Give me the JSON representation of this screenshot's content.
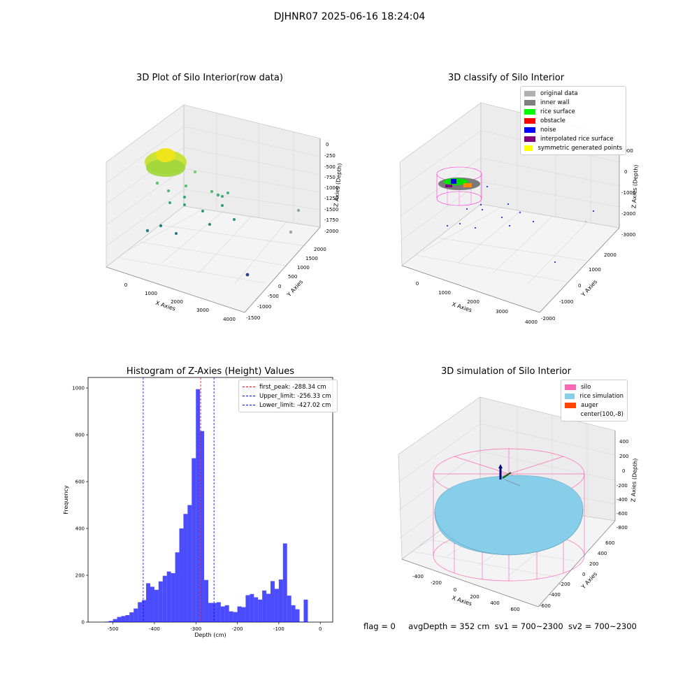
{
  "suptitle": "DJHNR07 2025-06-16 18:24:04",
  "panel1": {
    "title": "3D Plot of Silo Interior(row data)",
    "xlabel": "X Axies",
    "ylabel": "Y Axies",
    "zlabel": "Z Axies (Depth)",
    "x_ticks": [
      "0",
      "1000",
      "2000",
      "3000",
      "4000"
    ],
    "y_ticks": [
      "-1500",
      "-1000",
      "-500",
      "0",
      "500",
      "1000",
      "1500",
      "2000"
    ],
    "z_ticks": [
      "0",
      "-250",
      "-500",
      "-750",
      "-1000",
      "-1250",
      "-1500",
      "-1750",
      "-2000"
    ]
  },
  "panel2": {
    "title": "3D classify of Silo Interior",
    "xlabel": "X Axies",
    "ylabel": "Y Axies",
    "zlabel": "Z Axies (Depth)",
    "x_ticks": [
      "0",
      "1000",
      "2000",
      "3000",
      "4000"
    ],
    "y_ticks": [
      "-2000",
      "-1000",
      "0",
      "1000",
      "2000"
    ],
    "z_ticks": [
      "1000",
      "0",
      "-1000",
      "-2000",
      "-3000"
    ],
    "legend": [
      {
        "label": "original data",
        "color": "#b0b0b0"
      },
      {
        "label": "inner wall",
        "color": "#808080"
      },
      {
        "label": "rice surface",
        "color": "#00ff00"
      },
      {
        "label": "obstacle",
        "color": "#ff0000"
      },
      {
        "label": "noise",
        "color": "#0000ff"
      },
      {
        "label": "interpolated rice surface",
        "color": "#800080"
      },
      {
        "label": "symmetric generated points",
        "color": "#ffff00"
      }
    ]
  },
  "panel4": {
    "title": "3D simulation of Silo Interior",
    "xlabel": "X Axies",
    "ylabel": "Y Axies",
    "zlabel": "Z Axies (Depth)",
    "x_ticks": [
      "-400",
      "-200",
      "0",
      "200",
      "400",
      "600"
    ],
    "y_ticks": [
      "-600",
      "-400",
      "-200",
      "0",
      "200",
      "400",
      "600"
    ],
    "z_ticks": [
      "400",
      "200",
      "0",
      "-200",
      "-400",
      "-600",
      "-800"
    ],
    "legend": [
      {
        "label": "silo",
        "color": "#ff69b4"
      },
      {
        "label": "rice simulation",
        "color": "#87ceeb"
      },
      {
        "label": "auger",
        "color": "#ff4500"
      },
      {
        "label": "center(100,-8)",
        "color": ""
      }
    ]
  },
  "status": {
    "flag": "flag = 0",
    "avg": "avgDepth = 352 cm",
    "sv1": "sv1 = 700~2300",
    "sv2": "sv2 = 700~2300"
  },
  "chart_data": [
    {
      "type": "histogram",
      "title": "Histogram of Z-Axies (Height) Values",
      "xlabel": "Depth (cm)",
      "ylabel": "Frequency",
      "xlim": [
        -560,
        30
      ],
      "ylim": [
        0,
        1045
      ],
      "x_ticks": [
        -500,
        -400,
        -300,
        -200,
        -100,
        0
      ],
      "y_ticks": [
        0,
        200,
        400,
        600,
        800,
        1000
      ],
      "bar_color": "#0000ff",
      "bins": [
        {
          "x0": -520,
          "x1": -510,
          "y": 2
        },
        {
          "x0": -510,
          "x1": -500,
          "y": 5
        },
        {
          "x0": -500,
          "x1": -490,
          "y": 13
        },
        {
          "x0": -490,
          "x1": -480,
          "y": 22
        },
        {
          "x0": -480,
          "x1": -470,
          "y": 26
        },
        {
          "x0": -470,
          "x1": -460,
          "y": 30
        },
        {
          "x0": -460,
          "x1": -450,
          "y": 42
        },
        {
          "x0": -450,
          "x1": -440,
          "y": 58
        },
        {
          "x0": -440,
          "x1": -430,
          "y": 85
        },
        {
          "x0": -430,
          "x1": -420,
          "y": 94
        },
        {
          "x0": -420,
          "x1": -410,
          "y": 166
        },
        {
          "x0": -410,
          "x1": -400,
          "y": 151
        },
        {
          "x0": -400,
          "x1": -390,
          "y": 138
        },
        {
          "x0": -390,
          "x1": -380,
          "y": 174
        },
        {
          "x0": -380,
          "x1": -370,
          "y": 198
        },
        {
          "x0": -370,
          "x1": -360,
          "y": 216
        },
        {
          "x0": -360,
          "x1": -350,
          "y": 209
        },
        {
          "x0": -350,
          "x1": -340,
          "y": 298
        },
        {
          "x0": -340,
          "x1": -330,
          "y": 400
        },
        {
          "x0": -330,
          "x1": -320,
          "y": 462
        },
        {
          "x0": -320,
          "x1": -310,
          "y": 500
        },
        {
          "x0": -310,
          "x1": -300,
          "y": 700
        },
        {
          "x0": -300,
          "x1": -290,
          "y": 995
        },
        {
          "x0": -290,
          "x1": -280,
          "y": 816
        },
        {
          "x0": -280,
          "x1": -270,
          "y": 180
        },
        {
          "x0": -270,
          "x1": -260,
          "y": 82
        },
        {
          "x0": -260,
          "x1": -250,
          "y": 82
        },
        {
          "x0": -250,
          "x1": -240,
          "y": 85
        },
        {
          "x0": -240,
          "x1": -230,
          "y": 67
        },
        {
          "x0": -230,
          "x1": -220,
          "y": 72
        },
        {
          "x0": -220,
          "x1": -210,
          "y": 46
        },
        {
          "x0": -210,
          "x1": -200,
          "y": 43
        },
        {
          "x0": -200,
          "x1": -190,
          "y": 67
        },
        {
          "x0": -190,
          "x1": -180,
          "y": 64
        },
        {
          "x0": -180,
          "x1": -170,
          "y": 115
        },
        {
          "x0": -170,
          "x1": -160,
          "y": 120
        },
        {
          "x0": -160,
          "x1": -150,
          "y": 106
        },
        {
          "x0": -150,
          "x1": -140,
          "y": 96
        },
        {
          "x0": -140,
          "x1": -130,
          "y": 135
        },
        {
          "x0": -130,
          "x1": -120,
          "y": 121
        },
        {
          "x0": -120,
          "x1": -110,
          "y": 175
        },
        {
          "x0": -110,
          "x1": -100,
          "y": 142
        },
        {
          "x0": -100,
          "x1": -90,
          "y": 182
        },
        {
          "x0": -90,
          "x1": -80,
          "y": 336
        },
        {
          "x0": -80,
          "x1": -70,
          "y": 113
        },
        {
          "x0": -70,
          "x1": -60,
          "y": 72
        },
        {
          "x0": -60,
          "x1": -50,
          "y": 55
        },
        {
          "x0": -50,
          "x1": -40,
          "y": 2
        },
        {
          "x0": -40,
          "x1": -30,
          "y": 96
        }
      ],
      "vlines": [
        {
          "x": -288.34,
          "color": "#ff0000",
          "label": "first_peak: -288.34 cm"
        },
        {
          "x": -256.33,
          "color": "#0000ff",
          "label": "Upper_limit: -256.33 cm"
        },
        {
          "x": -427.02,
          "color": "#0000ff",
          "label": "Lower_limit: -427.02 cm"
        }
      ],
      "legend_position": "top-right"
    }
  ]
}
